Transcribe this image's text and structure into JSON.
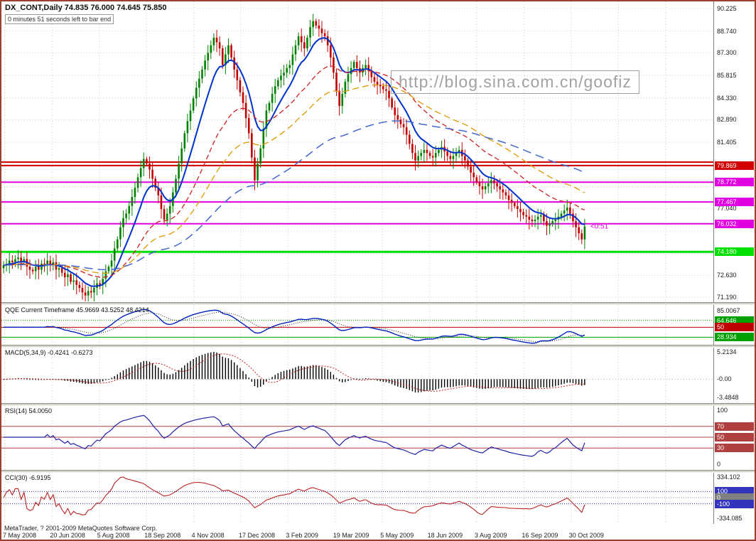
{
  "window": {
    "symbol_title": "DX_CONT,Daily 74.835 76.000 74.645 75.850",
    "countdown_text": "0 minutes 51 seconds left to bar end",
    "watermark": "http://blog.sina.com.cn/goofiz",
    "copyright": "MetaTrader, ? 2001-2009 MetaQuotes Software Corp."
  },
  "timeline": [
    "7 May 2008",
    "20 Jun 2008",
    "5 Aug 2008",
    "18 Sep 2008",
    "4 Nov 2008",
    "17 Dec 2008",
    "3 Feb 2009",
    "19 Mar 2009",
    "5 May 2009",
    "18 Jun 2009",
    "3 Aug 2009",
    "16 Sep 2009",
    "30 Oct 2009"
  ],
  "chart_data": {
    "type": "candlestick",
    "symbol": "DX_CONT",
    "timeframe": "Daily",
    "ohlc_current": {
      "open": 74.835,
      "high": 76.0,
      "low": 74.645,
      "close": 75.85
    },
    "main": {
      "axis": {
        "min": 71.19,
        "max": 90.225,
        "grid_prices": [
          90.225,
          88.74,
          87.3,
          85.815,
          84.33,
          82.89,
          81.405,
          79.92,
          78.435,
          77.04,
          75.555,
          74.07,
          72.63,
          71.19
        ],
        "label_prices": [
          90.225,
          88.74,
          87.3,
          85.815,
          84.33,
          82.89,
          81.405,
          77.04,
          72.63,
          71.19
        ]
      },
      "hlines": [
        {
          "price": 80.1,
          "color": "#d20000",
          "width": 2,
          "label": null
        },
        {
          "price": 79.869,
          "color": "#d20000",
          "width": 2,
          "label": "79.869"
        },
        {
          "price": 78.772,
          "color": "#e000e0",
          "width": 2,
          "label": "78.772"
        },
        {
          "price": 77.467,
          "color": "#e000e0",
          "width": 2,
          "label": "77.467"
        },
        {
          "price": 76.032,
          "color": "#e000e0",
          "width": 2,
          "label": "76.032"
        },
        {
          "price": 74.18,
          "color": "#00e000",
          "width": 3,
          "label": "74.180"
        }
      ],
      "bar_label": {
        "text": "<0:51",
        "price": 75.85,
        "color": "#e000e0"
      },
      "candle_up": "#008000",
      "candle_down": "#c00000",
      "ma_lines": [
        {
          "period": 10,
          "color": "#0033cc",
          "width": 2,
          "dash": ""
        },
        {
          "period": 32,
          "color": "#cc2222",
          "width": 1.3,
          "dash": "7,4"
        },
        {
          "period": 55,
          "color": "#dd9900",
          "width": 1.3,
          "dash": "9,5"
        },
        {
          "period": 110,
          "color": "#4466cc",
          "width": 1.5,
          "dash": "12,7"
        }
      ],
      "closes": [
        73.3,
        73.4,
        73.6,
        73.5,
        73.7,
        73.8,
        73.5,
        73.7,
        73.2,
        73.0,
        72.9,
        73.2,
        73.0,
        73.4,
        73.3,
        73.6,
        73.3,
        73.5,
        73.0,
        73.1,
        72.8,
        72.5,
        72.7,
        72.2,
        72.3,
        72.0,
        71.8,
        71.5,
        71.3,
        71.6,
        71.5,
        71.8,
        72.1,
        72.0,
        72.4,
        72.9,
        73.2,
        73.6,
        74.4,
        75.0,
        75.8,
        76.4,
        76.7,
        77.2,
        77.8,
        78.4,
        79.1,
        79.7,
        80.3,
        80.0,
        79.6,
        79.0,
        78.4,
        77.9,
        77.0,
        76.3,
        76.7,
        77.2,
        78.1,
        79.0,
        80.0,
        81.0,
        82.0,
        82.8,
        83.5,
        84.3,
        85.0,
        85.6,
        86.2,
        86.8,
        87.3,
        87.8,
        88.3,
        88.0,
        87.6,
        86.5,
        87.2,
        87.8,
        87.0,
        86.2,
        85.5,
        84.7,
        84.0,
        83.0,
        82.0,
        80.4,
        78.9,
        80.0,
        81.0,
        82.3,
        83.5,
        84.0,
        84.6,
        85.1,
        85.5,
        85.8,
        86.0,
        86.3,
        86.5,
        87.2,
        87.8,
        88.4,
        88.0,
        87.6,
        88.3,
        89.0,
        89.4,
        89.1,
        88.9,
        88.6,
        88.4,
        87.8,
        87.0,
        86.0,
        84.8,
        83.8,
        84.6,
        85.4,
        85.9,
        86.3,
        86.7,
        86.3,
        86.0,
        86.3,
        86.5,
        86.1,
        85.7,
        85.4,
        85.2,
        85.1,
        84.9,
        84.8,
        84.3,
        83.7,
        83.2,
        82.9,
        82.6,
        82.4,
        81.9,
        81.3,
        80.7,
        80.2,
        80.5,
        80.7,
        80.9,
        80.7,
        80.5,
        80.4,
        80.7,
        80.9,
        81.1,
        80.8,
        80.5,
        80.3,
        80.5,
        80.7,
        80.9,
        80.5,
        80.2,
        79.8,
        79.4,
        79.1,
        78.8,
        78.5,
        78.3,
        78.5,
        78.7,
        78.9,
        78.7,
        78.5,
        78.3,
        78.1,
        77.9,
        77.6,
        77.4,
        77.2,
        77.0,
        76.8,
        76.6,
        76.5,
        76.3,
        76.2,
        76.3,
        76.5,
        76.6,
        76.2,
        75.9,
        76.0,
        76.2,
        76.3,
        76.5,
        76.7,
        76.9,
        77.1,
        76.7,
        76.2,
        75.8,
        75.4,
        75.0,
        75.85
      ]
    },
    "qqe": {
      "title": "QQE Current Timeframe 45.9669 43.5252 48.4214",
      "axis": {
        "min": 25,
        "max": 88
      },
      "labels_plain": [
        {
          "value": 85.0067,
          "text": "85.0067"
        }
      ],
      "levels": [
        {
          "value": 64.646,
          "text": "64.646",
          "color": "#00a000",
          "style": "dot"
        },
        {
          "value": 50,
          "text": "50",
          "color": "#c00000",
          "style": "solid"
        },
        {
          "value": 28.934,
          "text": "28.934",
          "color": "#00a000",
          "style": "solid"
        }
      ],
      "line_color": "#0022bb"
    },
    "macd": {
      "title": "MACD(5,34,9) -0.4241 -0.6273",
      "axis": {
        "min": -3.4848,
        "max": 5.2134
      },
      "labels_plain": [
        {
          "value": 5.2134,
          "text": "5.2134"
        },
        {
          "value": 0,
          "text": "-0.00"
        },
        {
          "value": -3.4848,
          "text": "-3.4848"
        }
      ],
      "fast": 5,
      "slow": 34,
      "signal": 9,
      "hist_color": "#000000",
      "signal_color": "#cc2222"
    },
    "rsi": {
      "title": "RSI(14) 54.0050",
      "axis": {
        "min": 0,
        "max": 100
      },
      "period": 14,
      "labels_plain": [
        {
          "value": 100,
          "text": "100"
        },
        {
          "value": 0,
          "text": "0"
        }
      ],
      "levels": [
        {
          "value": 70,
          "text": "70",
          "color": "#b04040",
          "style": "solid"
        },
        {
          "value": 50,
          "text": "50",
          "color": "#b04040",
          "style": "solid"
        },
        {
          "value": 30,
          "text": "30",
          "color": "#b04040",
          "style": "solid"
        }
      ],
      "line_color": "#2222aa"
    },
    "cci": {
      "title": "CCI(30) -6.9195",
      "axis": {
        "min": -334.085,
        "max": 334.102
      },
      "period": 30,
      "labels_plain": [
        {
          "value": 334.102,
          "text": "334.102"
        },
        {
          "value": -334.085,
          "text": "-334.085"
        }
      ],
      "levels": [
        {
          "value": 100,
          "text": "100",
          "color": "#3333bb",
          "style": "dot"
        },
        {
          "value": 0,
          "text": "0",
          "color": "#808080",
          "style": "dot"
        },
        {
          "value": -100,
          "text": "-100",
          "color": "#3333bb",
          "style": "dot"
        }
      ],
      "line_color": "#bb2222"
    }
  }
}
